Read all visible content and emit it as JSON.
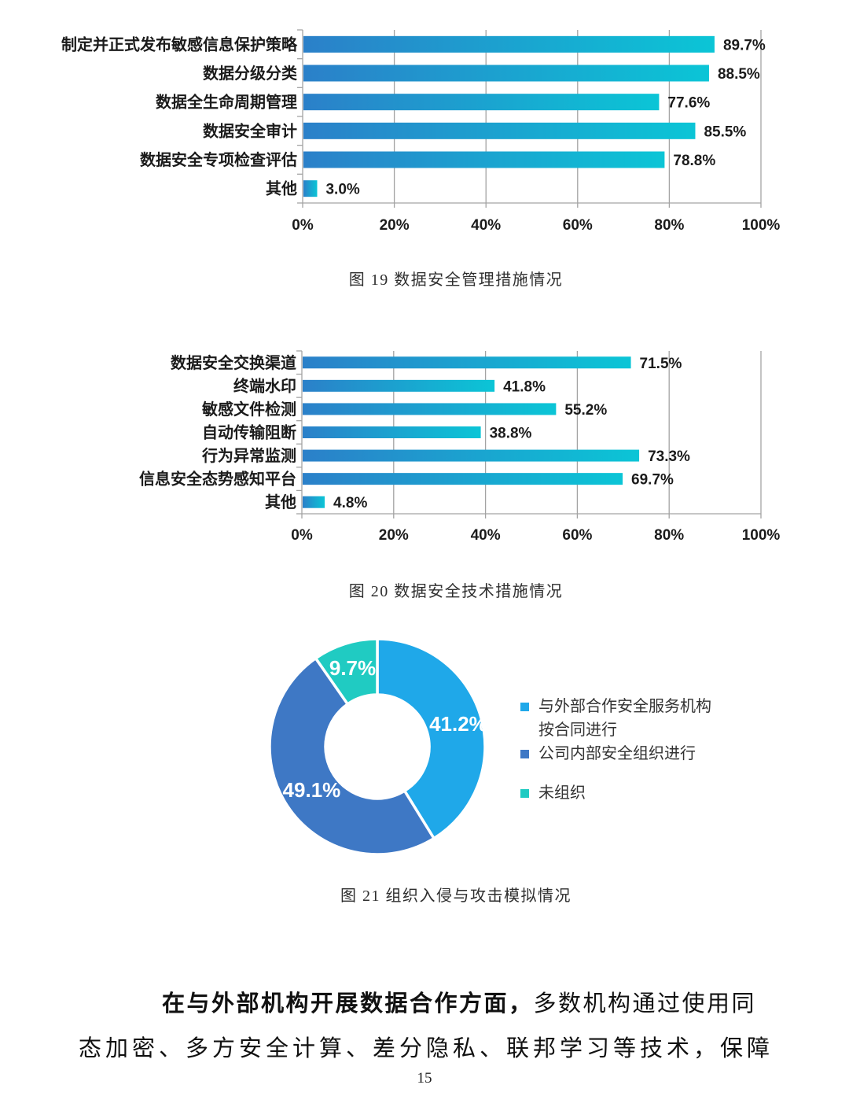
{
  "page": {
    "number": "15"
  },
  "colors": {
    "bar_gradient_start": "#2B80C9",
    "bar_gradient_end": "#0BC5D6",
    "grid_line": "#A3A3A3",
    "chart_text": "#1B1B1B",
    "donut_label_text": "#FFFFFF"
  },
  "chart_data": [
    {
      "type": "bar",
      "orientation": "horizontal",
      "caption": "图 19 数据安全管理措施情况",
      "categories": [
        "制定并正式发布敏感信息保护策略",
        "数据分级分类",
        "数据全生命周期管理",
        "数据安全审计",
        "数据安全专项检查评估",
        "其他"
      ],
      "values": [
        89.7,
        88.5,
        77.6,
        85.5,
        78.8,
        3.0
      ],
      "value_labels": [
        "89.7%",
        "88.5%",
        "77.6%",
        "85.5%",
        "78.8%",
        "3.0%"
      ],
      "x_ticks": [
        "0%",
        "20%",
        "40%",
        "60%",
        "80%",
        "100%"
      ],
      "xlim": [
        0,
        100
      ],
      "grid": true,
      "legend": "none"
    },
    {
      "type": "bar",
      "orientation": "horizontal",
      "caption": "图 20 数据安全技术措施情况",
      "categories": [
        "数据安全交换渠道",
        "终端水印",
        "敏感文件检测",
        "自动传输阻断",
        "行为异常监测",
        "信息安全态势感知平台",
        "其他"
      ],
      "values": [
        71.5,
        41.8,
        55.2,
        38.8,
        73.3,
        69.7,
        4.8
      ],
      "value_labels": [
        "71.5%",
        "41.8%",
        "55.2%",
        "38.8%",
        "73.3%",
        "69.7%",
        "4.8%"
      ],
      "x_ticks": [
        "0%",
        "20%",
        "40%",
        "60%",
        "80%",
        "100%"
      ],
      "xlim": [
        0,
        100
      ],
      "grid": true,
      "legend": "none"
    },
    {
      "type": "donut",
      "caption": "图 21 组织入侵与攻击模拟情况",
      "slices": [
        {
          "label": "与外部合作安全服务机构按合同进行",
          "value": 41.2,
          "display": "41.2%",
          "color": "#1FA8E9"
        },
        {
          "label": "公司内部安全组织进行",
          "value": 49.1,
          "display": "49.1%",
          "color": "#3E78C5"
        },
        {
          "label": "未组织",
          "value": 9.7,
          "display": "9.7%",
          "color": "#20CBC2"
        }
      ],
      "legend_entries": [
        {
          "lines": [
            "与外部合作安全服务机构",
            "按合同进行"
          ],
          "color": "#1FA8E9"
        },
        {
          "lines": [
            "公司内部安全组织进行"
          ],
          "color": "#3E78C5"
        },
        {
          "lines": [
            "未组织"
          ],
          "color": "#20CBC2"
        }
      ],
      "legend_position": "right"
    }
  ],
  "paragraph": {
    "line1_bold": "在与外部机构开展数据合作方面，",
    "line1_rest": "多数机构通过使用同",
    "line2": "态加密、多方安全计算、差分隐私、联邦学习等技术，保障"
  }
}
